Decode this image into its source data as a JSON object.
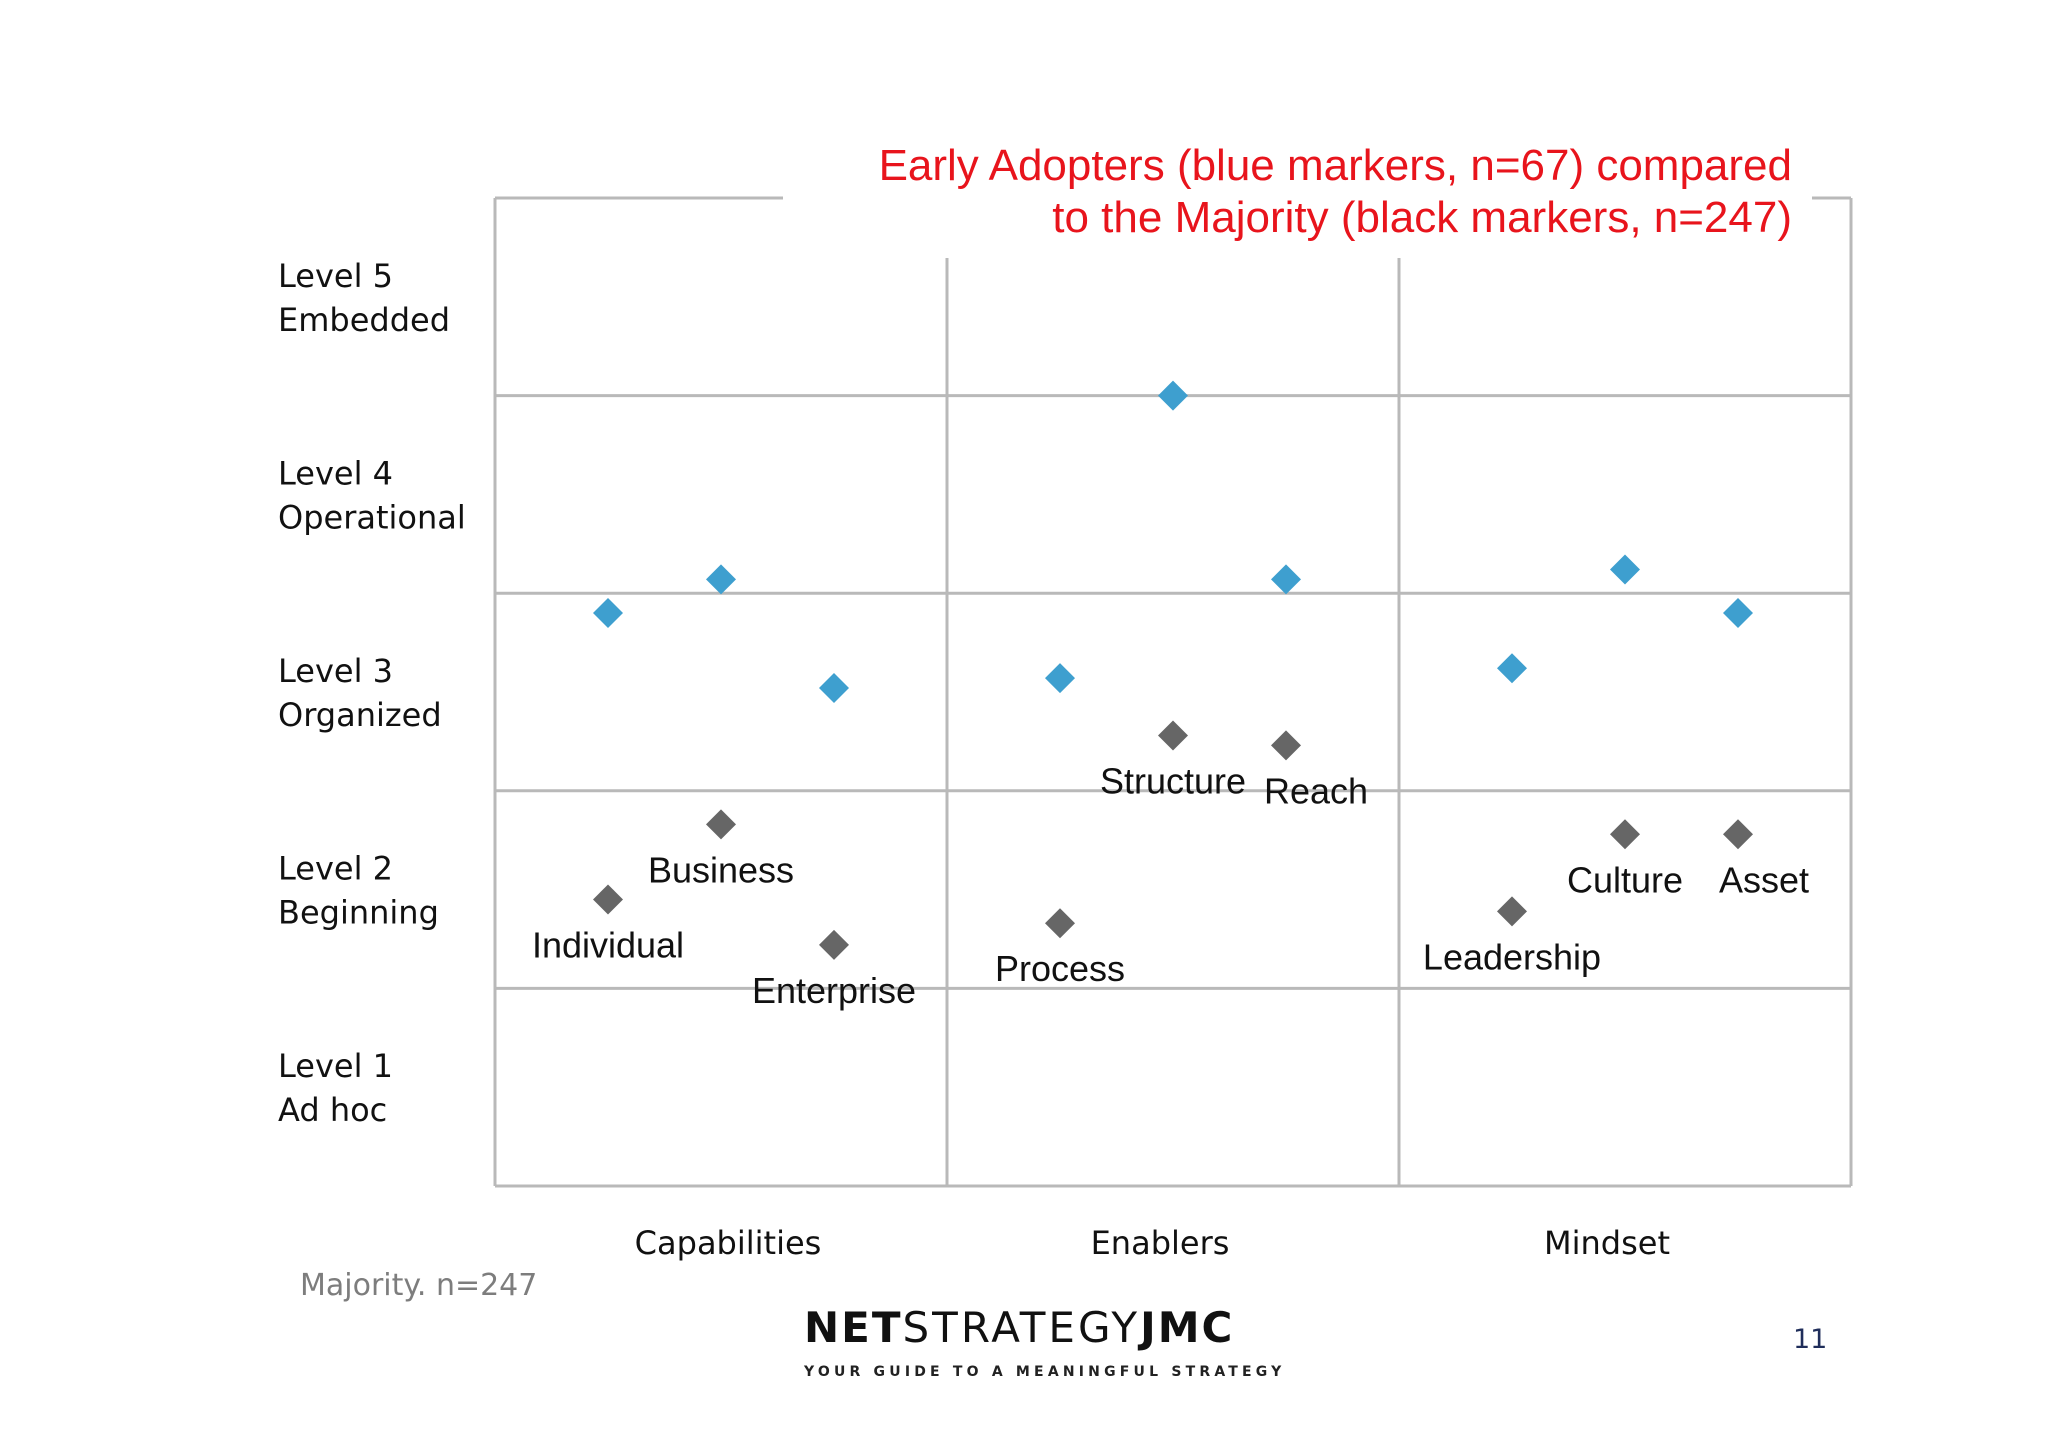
{
  "annotation": {
    "line1": "Early Adopters (blue markers, n=67) compared",
    "line2": "to the Majority (black markers, n=247)",
    "color": "#e8141c"
  },
  "footnote": "Majority. n=247",
  "logo": {
    "part1": "NET",
    "part2": "STRATEGY",
    "part3": "JMC",
    "tagline": "YOUR GUIDE TO A MEANINGFUL STRATEGY"
  },
  "page_number": "11",
  "chart_data": {
    "type": "scatter",
    "title": "",
    "x_categories": [
      "Capabilities",
      "Enablers",
      "Mindset"
    ],
    "y_levels": [
      {
        "level": 1,
        "line1": "Level 1",
        "line2": "Ad hoc"
      },
      {
        "level": 2,
        "line1": "Level 2",
        "line2": "Beginning"
      },
      {
        "level": 3,
        "line1": "Level 3",
        "line2": "Organized"
      },
      {
        "level": 4,
        "line1": "Level 4",
        "line2": "Operational"
      },
      {
        "level": 5,
        "line1": "Level 5",
        "line2": "Embedded"
      }
    ],
    "ylim": [
      0.5,
      5.5
    ],
    "grid": true,
    "series": [
      {
        "name": "Early Adopters",
        "color": "#3e9fcf",
        "points": [
          {
            "dimension": "Individual",
            "category": "Capabilities",
            "x": 0.25,
            "y": 3.4
          },
          {
            "dimension": "Business",
            "category": "Capabilities",
            "x": 0.5,
            "y": 3.57
          },
          {
            "dimension": "Enterprise",
            "category": "Capabilities",
            "x": 0.75,
            "y": 3.02
          },
          {
            "dimension": "Process",
            "category": "Enablers",
            "x": 0.25,
            "y": 3.07
          },
          {
            "dimension": "Structure",
            "category": "Enablers",
            "x": 0.5,
            "y": 4.5
          },
          {
            "dimension": "Reach",
            "category": "Enablers",
            "x": 0.75,
            "y": 3.57
          },
          {
            "dimension": "Leadership",
            "category": "Mindset",
            "x": 0.25,
            "y": 3.12
          },
          {
            "dimension": "Culture",
            "category": "Mindset",
            "x": 0.5,
            "y": 3.62
          },
          {
            "dimension": "Asset",
            "category": "Mindset",
            "x": 0.75,
            "y": 3.4
          }
        ]
      },
      {
        "name": "Majority",
        "color": "#666666",
        "points": [
          {
            "dimension": "Individual",
            "category": "Capabilities",
            "x": 0.25,
            "y": 1.95,
            "label": "Individual"
          },
          {
            "dimension": "Business",
            "category": "Capabilities",
            "x": 0.5,
            "y": 2.33,
            "label": "Business"
          },
          {
            "dimension": "Enterprise",
            "category": "Capabilities",
            "x": 0.75,
            "y": 1.72,
            "label": "Enterprise"
          },
          {
            "dimension": "Process",
            "category": "Enablers",
            "x": 0.25,
            "y": 1.83,
            "label": "Process"
          },
          {
            "dimension": "Structure",
            "category": "Enablers",
            "x": 0.5,
            "y": 2.78,
            "label": "Structure"
          },
          {
            "dimension": "Reach",
            "category": "Enablers",
            "x": 0.75,
            "y": 2.73,
            "label": "Reach"
          },
          {
            "dimension": "Leadership",
            "category": "Mindset",
            "x": 0.25,
            "y": 1.89,
            "label": "Leadership"
          },
          {
            "dimension": "Culture",
            "category": "Mindset",
            "x": 0.5,
            "y": 2.28,
            "label": "Culture"
          },
          {
            "dimension": "Asset",
            "category": "Mindset",
            "x": 0.75,
            "y": 2.28,
            "label": "Asset"
          }
        ]
      }
    ]
  }
}
